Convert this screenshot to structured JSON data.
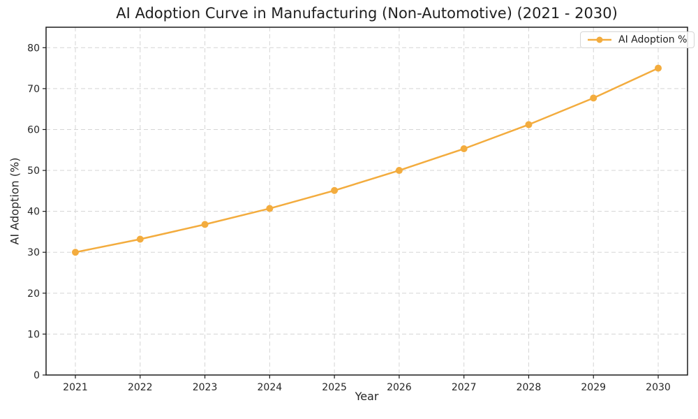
{
  "chart_data": {
    "type": "line",
    "title": "AI Adoption Curve in Manufacturing (Non-Automotive) (2021 - 2030)",
    "xlabel": "Year",
    "ylabel": "AI Adoption (%)",
    "categories": [
      "2021",
      "2022",
      "2023",
      "2024",
      "2025",
      "2026",
      "2027",
      "2028",
      "2029",
      "2030"
    ],
    "series": [
      {
        "name": "AI Adoption %",
        "values": [
          30.0,
          33.2,
          36.8,
          40.7,
          45.1,
          50.0,
          55.3,
          61.2,
          67.7,
          75.0
        ],
        "color": "#F3AC3E",
        "marker": "circle"
      }
    ],
    "ylim": [
      0,
      85
    ],
    "yticks": [
      0,
      10,
      20,
      30,
      40,
      50,
      60,
      70,
      80
    ],
    "grid": true,
    "grid_style": "dashed",
    "legend_position": "upper right"
  },
  "style": {
    "accent_color": "#F3AC3E",
    "grid_color": "#d5d5d5",
    "spine_color": "#1b1b1b",
    "tick_color": "#1b1b1b",
    "text_color": "#262626",
    "title_color": "#1f1f1f",
    "legend_border_color": "#d5d5d5",
    "background_color": "#ffffff"
  }
}
